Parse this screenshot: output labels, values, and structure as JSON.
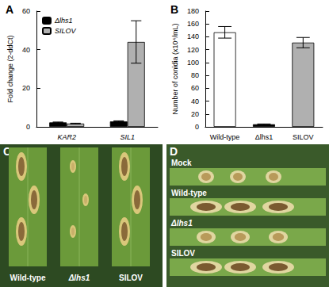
{
  "chart_data": [
    {
      "type": "bar",
      "title": "A",
      "ylabel": "Fold change (2-ddCt)",
      "categories": [
        "KAR2",
        "SIL1"
      ],
      "series": [
        {
          "name": "Δlhs1",
          "color": "#000000",
          "values": [
            2.3,
            2.8
          ],
          "errors": [
            0.2,
            0.3
          ]
        },
        {
          "name": "SILOV",
          "color": "#b0b0b0",
          "values": [
            1.7,
            44
          ],
          "errors": [
            0.2,
            11
          ]
        }
      ],
      "ylim": [
        0,
        60
      ],
      "yticks": [
        0,
        20,
        40,
        60
      ],
      "legend": "upper left",
      "grid": false
    },
    {
      "type": "bar",
      "title": "B",
      "ylabel": "Number of conidia (x10⁴/mL)",
      "categories": [
        "Wild-type",
        "Δlhs1",
        "SILOV"
      ],
      "values": [
        147,
        4,
        131
      ],
      "errors": [
        9,
        0.5,
        8
      ],
      "colors": [
        "#ffffff",
        "#000000",
        "#b0b0b0"
      ],
      "ylim": [
        0,
        180
      ],
      "yticks": [
        0,
        20,
        40,
        60,
        80,
        100,
        120,
        140,
        160,
        180
      ],
      "grid": false
    }
  ],
  "photos": [
    {
      "title": "C",
      "labels": [
        "Wild-type",
        "Δlhs1",
        "SILOV"
      ]
    },
    {
      "title": "D",
      "labels": [
        "Mock",
        "Wild-type",
        "Δlhs1",
        "SILOV"
      ]
    }
  ]
}
